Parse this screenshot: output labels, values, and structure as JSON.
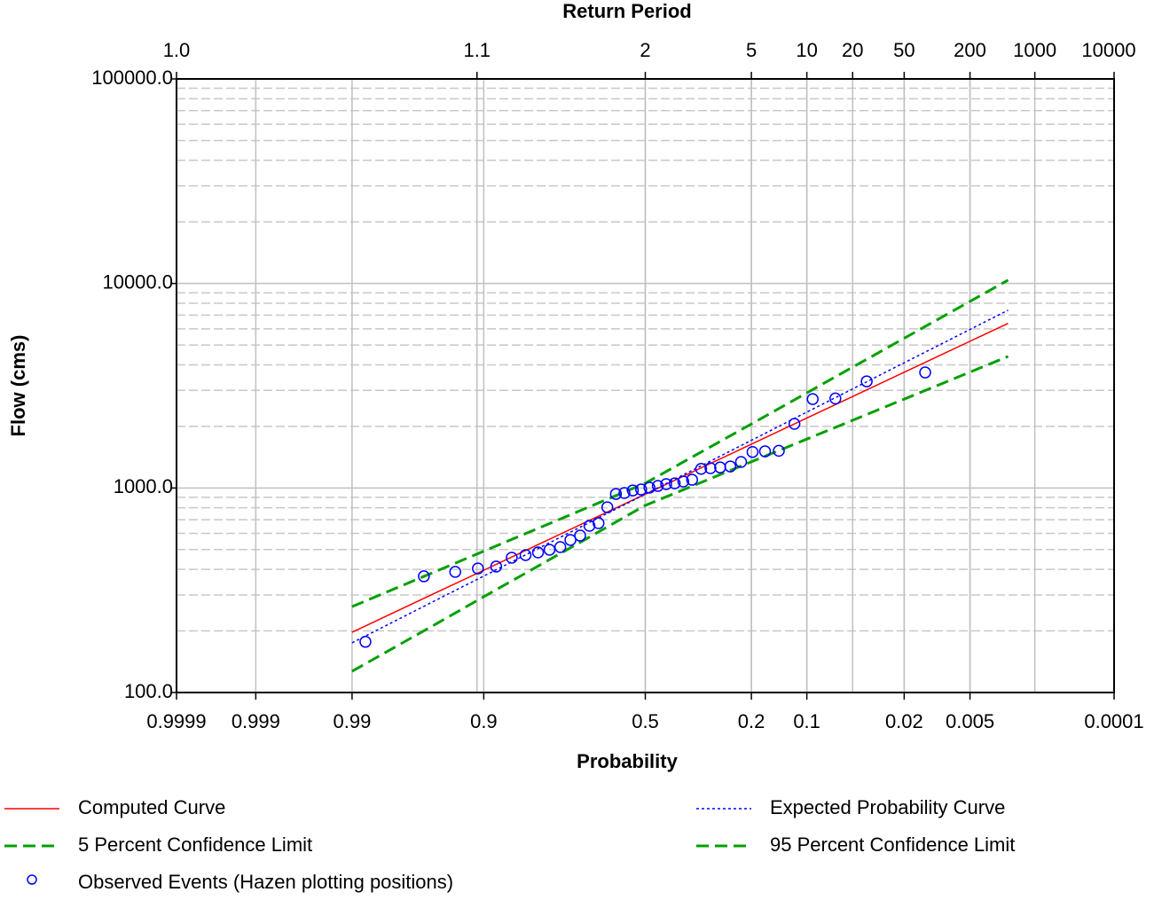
{
  "chart_data": {
    "type": "probability",
    "title": "Return Period",
    "xlabel": "Probability",
    "ylabel": "Flow (cms)",
    "xscale": "normal-probability",
    "yscale": "log",
    "grid": true,
    "xlim": [
      0.9999,
      0.0001
    ],
    "ylim": [
      100,
      100000
    ],
    "xticks": [
      0.9999,
      0.999,
      0.99,
      0.9,
      0.5,
      0.2,
      0.1,
      0.02,
      0.005,
      0.0001
    ],
    "x2ticks": [
      {
        "value": 1.0001,
        "label": "1.0"
      },
      1.1,
      2,
      5,
      10,
      20,
      50,
      200,
      1000,
      10000
    ],
    "yticks": [
      {
        "value": 100,
        "label": "100.0"
      },
      {
        "value": 1000,
        "label": "1000.0"
      },
      {
        "value": 10000,
        "label": "10000.0"
      },
      {
        "value": 100000,
        "label": "100000.0"
      }
    ],
    "series": [
      {
        "name": "Computed Curve",
        "color": "#ff0000",
        "style": "solid",
        "x": [
          0.99,
          0.95,
          0.9,
          0.8,
          0.5,
          0.2,
          0.1,
          0.05,
          0.02,
          0.01,
          0.005,
          0.002
        ],
        "values": [
          197,
          311,
          396,
          532,
          933,
          1637,
          2198,
          2801,
          3680,
          4413,
          5216,
          6380
        ]
      },
      {
        "name": "Expected Probability Curve",
        "color": "#0000ff",
        "style": "dotted",
        "x": [
          0.99,
          0.95,
          0.9,
          0.8,
          0.5,
          0.2,
          0.1,
          0.05,
          0.02,
          0.01,
          0.005,
          0.002
        ],
        "values": [
          175,
          286,
          371,
          509,
          933,
          1710,
          2350,
          3050,
          4095,
          4980,
          5960,
          7400
        ]
      },
      {
        "name": "5 Percent Confidence Limit",
        "color": "#00a000",
        "style": "dashed",
        "x": [
          0.99,
          0.95,
          0.9,
          0.8,
          0.5,
          0.2,
          0.1,
          0.05,
          0.02,
          0.01,
          0.005,
          0.002
        ],
        "values": [
          263,
          395,
          491,
          638,
          1055,
          2055,
          2917,
          3897,
          5395,
          6700,
          8170,
          10380
        ]
      },
      {
        "name": "95 Percent Confidence Limit",
        "color": "#00a000",
        "style": "dashed",
        "x": [
          0.99,
          0.95,
          0.9,
          0.8,
          0.5,
          0.2,
          0.1,
          0.05,
          0.02,
          0.01,
          0.005,
          0.002
        ],
        "values": [
          127,
          219,
          294,
          418,
          822,
          1343,
          1734,
          2142,
          2720,
          3187,
          3687,
          4395
        ]
      },
      {
        "name": "Observed Events (Hazen plotting positions)",
        "color": "#0000ff",
        "style": "markers",
        "x": [
          0.0132,
          0.0395,
          0.0658,
          0.0921,
          0.1184,
          0.1447,
          0.1711,
          0.1974,
          0.2237,
          0.25,
          0.2763,
          0.3026,
          0.3289,
          0.3553,
          0.3816,
          0.4079,
          0.4342,
          0.4605,
          0.4868,
          0.5132,
          0.5395,
          0.5658,
          0.5921,
          0.6184,
          0.6447,
          0.6711,
          0.6974,
          0.7237,
          0.75,
          0.7763,
          0.8026,
          0.8289,
          0.8553,
          0.8816,
          0.9079,
          0.9342,
          0.9605,
          0.9868
        ],
        "values": [
          3671,
          3322,
          2740,
          2720,
          2058,
          1520,
          1510,
          1500,
          1340,
          1274,
          1260,
          1250,
          1240,
          1097,
          1076,
          1054,
          1044,
          1023,
          1003,
          983,
          973,
          945,
          935,
          805,
          673,
          653,
          585,
          557,
          514,
          499,
          484,
          470,
          456,
          413,
          404,
          389,
          370,
          177
        ]
      }
    ]
  }
}
